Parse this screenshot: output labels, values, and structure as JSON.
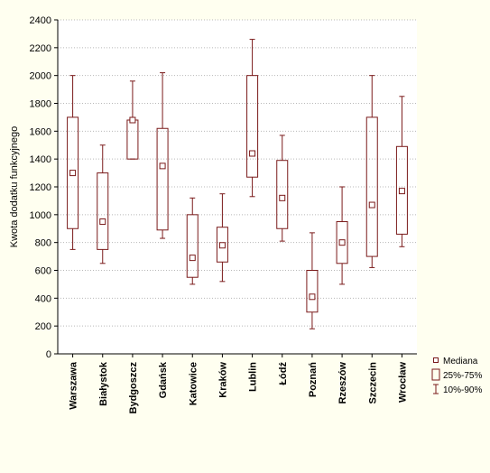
{
  "chart_data": {
    "type": "boxplot",
    "title": "",
    "ylabel": "Kwota dodatku funkcyjnego",
    "xlabel": "",
    "ylim": [
      0,
      2400
    ],
    "yticks": [
      0,
      200,
      400,
      600,
      800,
      1000,
      1200,
      1400,
      1600,
      1800,
      2000,
      2200,
      2400
    ],
    "grid": true,
    "legend_position": "bottom-right",
    "categories": [
      "Warszawa",
      "Białystok",
      "Bydgoszcz",
      "Gdańsk",
      "Katowice",
      "Kraków",
      "Lublin",
      "Łódź",
      "Poznań",
      "Rzeszów",
      "Szczecin",
      "Wrocław"
    ],
    "series": [
      {
        "category": "Warszawa",
        "p10": 750,
        "q1": 900,
        "median": 1300,
        "q3": 1700,
        "p90": 2000
      },
      {
        "category": "Białystok",
        "p10": 650,
        "q1": 750,
        "median": 950,
        "q3": 1300,
        "p90": 1500
      },
      {
        "category": "Bydgoszcz",
        "p10": 1400,
        "q1": 1400,
        "median": 1680,
        "q3": 1680,
        "p90": 1960
      },
      {
        "category": "Gdańsk",
        "p10": 830,
        "q1": 890,
        "median": 1350,
        "q3": 1620,
        "p90": 2020
      },
      {
        "category": "Katowice",
        "p10": 500,
        "q1": 550,
        "median": 690,
        "q3": 1000,
        "p90": 1120
      },
      {
        "category": "Kraków",
        "p10": 520,
        "q1": 660,
        "median": 780,
        "q3": 910,
        "p90": 1150
      },
      {
        "category": "Lublin",
        "p10": 1130,
        "q1": 1270,
        "median": 1440,
        "q3": 2000,
        "p90": 2260
      },
      {
        "category": "Łódź",
        "p10": 810,
        "q1": 900,
        "median": 1120,
        "q3": 1390,
        "p90": 1570
      },
      {
        "category": "Poznań",
        "p10": 180,
        "q1": 300,
        "median": 410,
        "q3": 600,
        "p90": 870
      },
      {
        "category": "Rzeszów",
        "p10": 500,
        "q1": 650,
        "median": 800,
        "q3": 950,
        "p90": 1200
      },
      {
        "category": "Szczecin",
        "p10": 620,
        "q1": 700,
        "median": 1070,
        "q3": 1700,
        "p90": 2000
      },
      {
        "category": "Wrocław",
        "p10": 770,
        "q1": 860,
        "median": 1170,
        "q3": 1490,
        "p90": 1850
      }
    ],
    "legend": [
      {
        "key": "median",
        "label": "Mediana"
      },
      {
        "key": "box",
        "label": "25%-75%"
      },
      {
        "key": "whisker",
        "label": "10%-90%"
      }
    ],
    "colors": {
      "stroke": "#7a1a1a",
      "grid": "#b8b8b8",
      "axis": "#000000"
    }
  }
}
